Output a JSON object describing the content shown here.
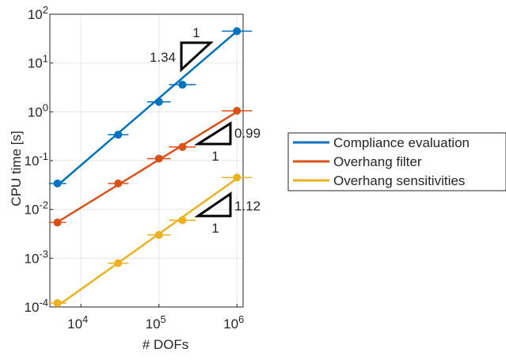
{
  "chart_data": {
    "type": "line",
    "xscale": "log",
    "yscale": "log",
    "xlabel": "# DOFs",
    "ylabel": "CPU time [s]",
    "xlim": [
      4000,
      1200000
    ],
    "ylim": [
      0.0001,
      100
    ],
    "grid": true,
    "legend_position": "right-outside",
    "x_ticks": [
      {
        "value": 10000,
        "base": "10",
        "exp": "4"
      },
      {
        "value": 100000,
        "base": "10",
        "exp": "5"
      },
      {
        "value": 1000000,
        "base": "10",
        "exp": "6"
      }
    ],
    "y_ticks": [
      {
        "value": 0.0001,
        "base": "10",
        "exp": "-4"
      },
      {
        "value": 0.001,
        "base": "10",
        "exp": "-3"
      },
      {
        "value": 0.01,
        "base": "10",
        "exp": "-2"
      },
      {
        "value": 0.1,
        "base": "10",
        "exp": "-1"
      },
      {
        "value": 1,
        "base": "10",
        "exp": "0"
      },
      {
        "value": 10,
        "base": "10",
        "exp": "1"
      },
      {
        "value": 100,
        "base": "10",
        "exp": "2"
      }
    ],
    "series": [
      {
        "name": "Compliance evaluation",
        "color": "#0072BD",
        "x": [
          5000,
          30000,
          100000,
          200000,
          1000000
        ],
        "y": [
          0.034,
          0.34,
          1.6,
          3.6,
          45
        ],
        "fit_y": [
          0.031,
          45
        ],
        "slope_label": "1.34",
        "run_label": "1"
      },
      {
        "name": "Overhang filter",
        "color": "#D95319",
        "x": [
          5000,
          30000,
          100000,
          200000,
          1000000
        ],
        "y": [
          0.0054,
          0.034,
          0.11,
          0.19,
          1.05
        ],
        "fit_y": [
          0.0055,
          1.0
        ],
        "slope_label": "0.99",
        "run_label": "1"
      },
      {
        "name": "Overhang sensitivities",
        "color": "#EDB120",
        "x": [
          5000,
          30000,
          100000,
          200000,
          1000000
        ],
        "y": [
          0.00012,
          0.00079,
          0.003,
          0.006,
          0.045
        ],
        "fit_y": [
          0.000105,
          0.043
        ],
        "slope_label": "1.12",
        "run_label": "1"
      }
    ]
  }
}
